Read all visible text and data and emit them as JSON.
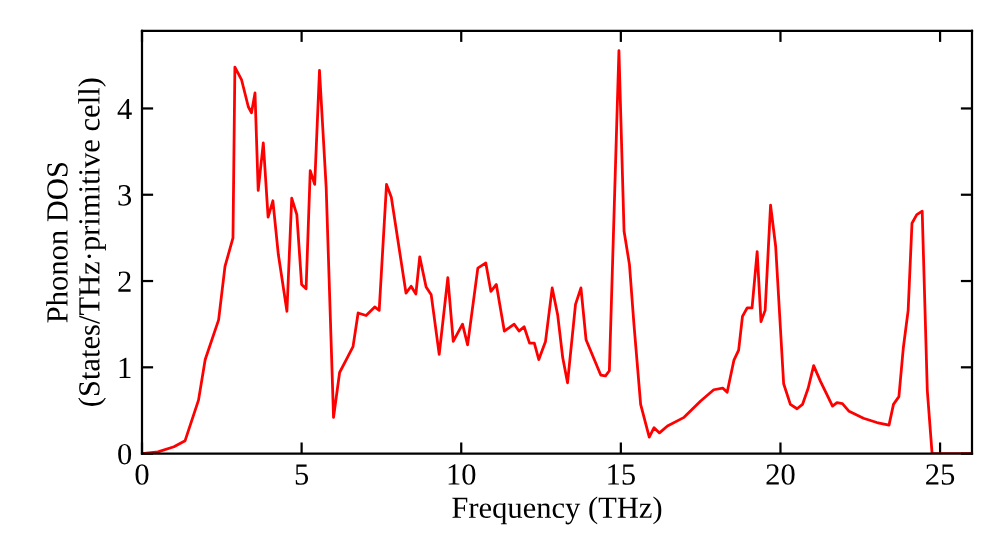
{
  "chart_data": {
    "type": "line",
    "xlabel": "Frequency (THz)",
    "ylabel": "Phonon DOS\n(States/THz·primitive cell)",
    "xlim": [
      0,
      26
    ],
    "ylim": [
      0,
      4.9
    ],
    "xticks": [
      0,
      5,
      10,
      15,
      20,
      25
    ],
    "yticks": [
      0,
      1,
      2,
      3,
      4
    ],
    "grid": false,
    "legend": false,
    "series": [
      {
        "color": "#ff0000",
        "x": [
          0,
          0.5,
          1.0,
          1.35,
          1.77,
          1.98,
          2.4,
          2.6,
          2.85,
          2.91,
          3.12,
          3.33,
          3.43,
          3.54,
          3.64,
          3.8,
          3.95,
          4.1,
          4.27,
          4.54,
          4.69,
          4.85,
          5.0,
          5.14,
          5.27,
          5.41,
          5.56,
          5.77,
          6.0,
          6.19,
          6.4,
          6.61,
          6.77,
          7.02,
          7.29,
          7.43,
          7.66,
          7.81,
          8.27,
          8.43,
          8.58,
          8.7,
          8.9,
          9.06,
          9.31,
          9.58,
          9.75,
          10.04,
          10.2,
          10.52,
          10.77,
          10.93,
          11.1,
          11.35,
          11.66,
          11.81,
          11.97,
          12.14,
          12.29,
          12.43,
          12.64,
          12.85,
          13.02,
          13.18,
          13.33,
          13.58,
          13.75,
          13.91,
          14.37,
          14.52,
          14.64,
          14.94,
          15.1,
          15.27,
          15.41,
          15.62,
          15.89,
          16.04,
          16.21,
          16.46,
          16.98,
          17.5,
          17.91,
          18.19,
          18.33,
          18.54,
          18.69,
          18.81,
          18.96,
          19.11,
          19.27,
          19.39,
          19.52,
          19.69,
          19.85,
          20.1,
          20.31,
          20.52,
          20.69,
          20.87,
          21.04,
          21.25,
          21.46,
          21.63,
          21.77,
          21.94,
          22.15,
          22.6,
          23.02,
          23.4,
          23.54,
          23.71,
          23.85,
          24.0,
          24.12,
          24.27,
          24.44,
          24.6,
          24.75,
          26.0
        ],
        "values": [
          0,
          0.02,
          0.08,
          0.15,
          0.62,
          1.09,
          1.55,
          2.17,
          2.5,
          4.48,
          4.33,
          4.02,
          3.95,
          4.18,
          3.05,
          3.6,
          2.74,
          2.93,
          2.31,
          1.65,
          2.96,
          2.77,
          1.96,
          1.91,
          3.28,
          3.12,
          4.44,
          3.08,
          0.42,
          0.94,
          1.09,
          1.24,
          1.63,
          1.6,
          1.7,
          1.66,
          3.12,
          2.97,
          1.86,
          1.94,
          1.85,
          2.28,
          1.93,
          1.84,
          1.15,
          2.04,
          1.3,
          1.5,
          1.26,
          2.15,
          2.21,
          1.88,
          1.96,
          1.42,
          1.5,
          1.42,
          1.47,
          1.28,
          1.28,
          1.09,
          1.3,
          1.92,
          1.61,
          1.11,
          0.82,
          1.73,
          1.92,
          1.32,
          0.91,
          0.9,
          0.96,
          4.67,
          2.58,
          2.19,
          1.5,
          0.57,
          0.19,
          0.3,
          0.24,
          0.32,
          0.42,
          0.61,
          0.74,
          0.76,
          0.71,
          1.08,
          1.2,
          1.59,
          1.69,
          1.69,
          2.34,
          1.53,
          1.66,
          2.88,
          2.4,
          0.81,
          0.57,
          0.52,
          0.57,
          0.76,
          1.02,
          0.84,
          0.68,
          0.55,
          0.59,
          0.58,
          0.49,
          0.41,
          0.36,
          0.33,
          0.57,
          0.66,
          1.23,
          1.66,
          2.67,
          2.77,
          2.81,
          0.73,
          0,
          0
        ]
      }
    ]
  }
}
